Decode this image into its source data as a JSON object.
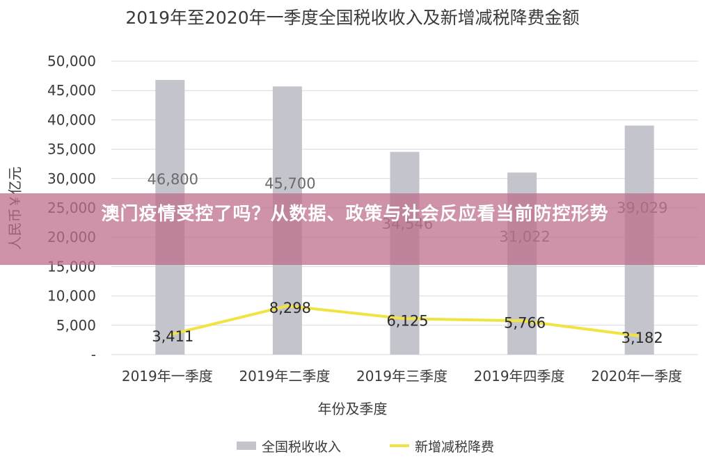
{
  "chart_data": {
    "type": "bar",
    "title": "2019年至2020年一季度全国税收收入及新增减税降费金额",
    "xlabel": "年份及季度",
    "ylabel": "人民币￥亿元",
    "categories": [
      "2019年一季度",
      "2019年二季度",
      "2019年三季度",
      "2019年四季度",
      "2020年一季度"
    ],
    "series": [
      {
        "name": "全国税收收入",
        "type": "bar",
        "color": "#c4c4cc",
        "values": [
          46800,
          45700,
          34546,
          31022,
          39029
        ],
        "labels": [
          "46,800",
          "45,700",
          "34,546",
          "31,022",
          "39,029"
        ]
      },
      {
        "name": "新增减税降费",
        "type": "line",
        "color": "#f0e442",
        "values": [
          3411,
          8298,
          6125,
          5766,
          3182
        ],
        "labels": [
          "3,411",
          "8,298",
          "6,125",
          "5,766",
          "3,182"
        ]
      }
    ],
    "ylim": [
      0,
      50000
    ],
    "yticks": [
      "-",
      "5,000",
      "10,000",
      "15,000",
      "20,000",
      "25,000",
      "30,000",
      "35,000",
      "40,000",
      "45,000",
      "50,000"
    ],
    "grid": true,
    "legend": "bottom"
  },
  "overlay_banner": "澳门疫情受控了吗？从数据、政策与社会反应看当前防控形势"
}
